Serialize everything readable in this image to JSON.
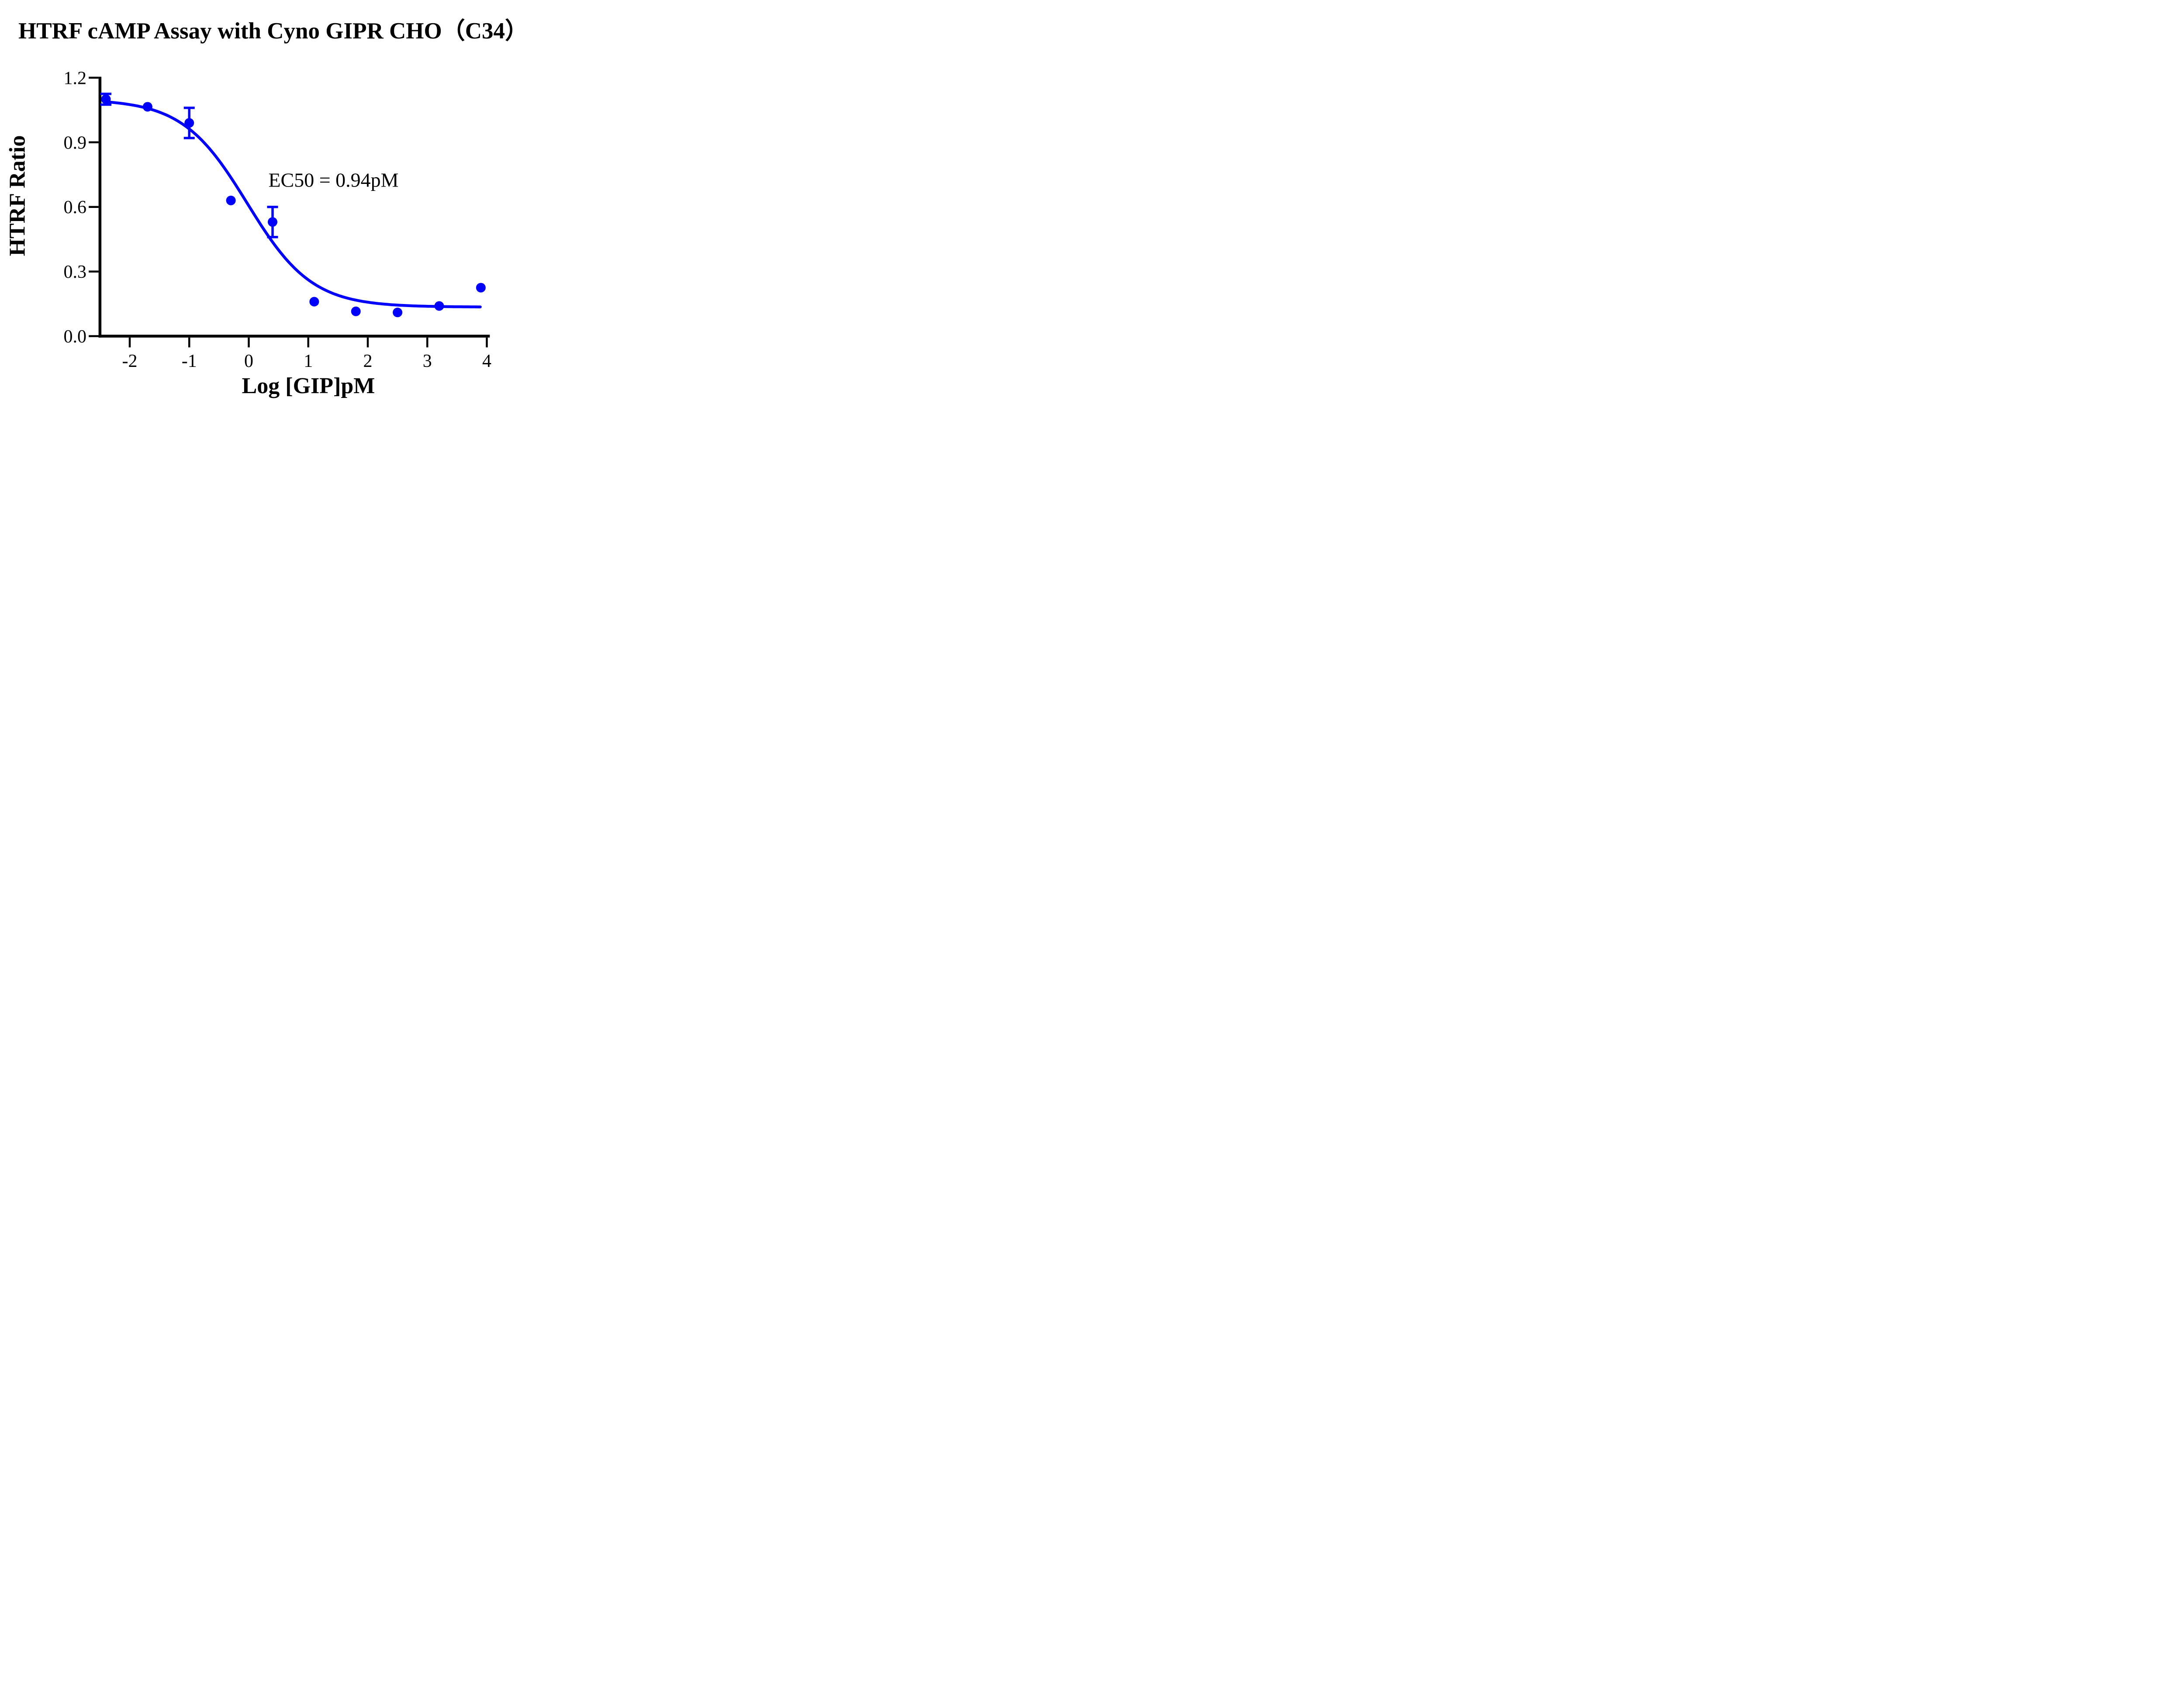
{
  "title": "HTRF cAMP Assay with Cyno GIPR CHO（C34）",
  "colors": {
    "series": "#0000FF",
    "axis": "#000000",
    "background": "#FFFFFF",
    "text": "#000000"
  },
  "chart_data": {
    "type": "scatter",
    "title": "HTRF cAMP Assay with Cyno GIPR CHO（C34）",
    "xlabel": "Log [GIP]pM",
    "ylabel": "HTRF Ratio",
    "xlim": [
      -2.5,
      4.05
    ],
    "ylim": [
      0.0,
      1.2
    ],
    "x_ticks": [
      -2,
      -1,
      0,
      1,
      2,
      3,
      4
    ],
    "x_tick_labels": [
      "-2",
      "-1",
      "0",
      "1",
      "2",
      "3",
      "4"
    ],
    "y_ticks": [
      0.0,
      0.3,
      0.6,
      0.9,
      1.2
    ],
    "y_tick_labels": [
      "0.0",
      "0.3",
      "0.6",
      "0.9",
      "1.2"
    ],
    "grid": false,
    "legend": "none",
    "marker": "circle",
    "series": [
      {
        "name": "Cyno GIPR CHO (C34)",
        "color": "#0000FF",
        "points": [
          {
            "x": -2.4,
            "y": 1.1,
            "err": 0.025
          },
          {
            "x": -1.7,
            "y": 1.065,
            "err": null
          },
          {
            "x": -1.0,
            "y": 0.99,
            "err": 0.07
          },
          {
            "x": -0.3,
            "y": 0.63,
            "err": null
          },
          {
            "x": 0.4,
            "y": 0.53,
            "err": 0.07
          },
          {
            "x": 1.1,
            "y": 0.16,
            "err": null
          },
          {
            "x": 1.8,
            "y": 0.115,
            "err": null
          },
          {
            "x": 2.5,
            "y": 0.11,
            "err": null
          },
          {
            "x": 3.2,
            "y": 0.14,
            "err": null
          },
          {
            "x": 3.9,
            "y": 0.225,
            "err": null
          }
        ]
      }
    ],
    "fit_curve": {
      "model": "4PL",
      "top": 1.1,
      "bottom": 0.135,
      "log_ec50": -0.027,
      "hill_slope": 0.8,
      "x_start": -2.39,
      "x_end": 3.91
    },
    "annotation": {
      "text": "EC50 = 0.94pM",
      "x": 0.33,
      "y": 0.725,
      "align": "left"
    },
    "ec50_pM": 0.94
  }
}
